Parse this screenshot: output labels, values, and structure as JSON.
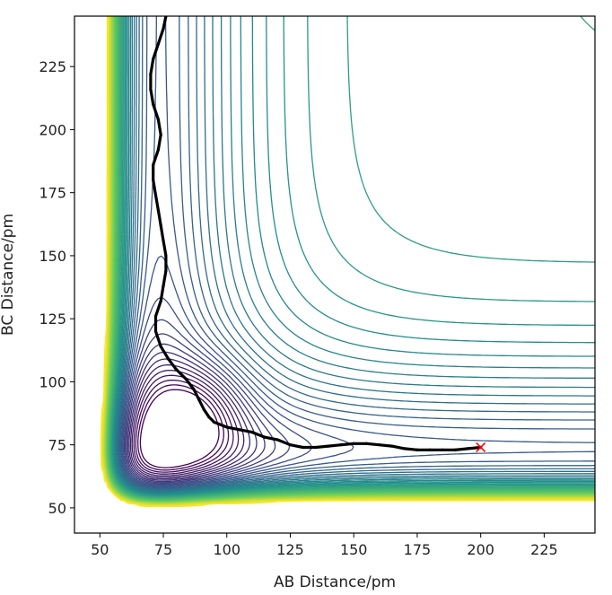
{
  "chart_data": {
    "type": "contour",
    "title": "",
    "xlabel": "AB Distance/pm",
    "ylabel": "BC Distance/pm",
    "xlim": [
      40,
      245
    ],
    "ylim": [
      40,
      245
    ],
    "xticks": [
      50,
      75,
      100,
      125,
      150,
      175,
      200,
      225
    ],
    "yticks": [
      50,
      75,
      100,
      125,
      150,
      175,
      200,
      225
    ],
    "colormap": "viridis",
    "colormap_stops": [
      "#440154",
      "#3b528b",
      "#21918c",
      "#5ec962",
      "#fde725"
    ],
    "grid": false,
    "legend": "none",
    "trajectory": {
      "color": "#000000",
      "points": [
        [
          76,
          245
        ],
        [
          75,
          240
        ],
        [
          73,
          234
        ],
        [
          71,
          228
        ],
        [
          70,
          222
        ],
        [
          70,
          216
        ],
        [
          71,
          210
        ],
        [
          73,
          204
        ],
        [
          74,
          198
        ],
        [
          73,
          192
        ],
        [
          71,
          186
        ],
        [
          71,
          180
        ],
        [
          72,
          174
        ],
        [
          73,
          168
        ],
        [
          74,
          162
        ],
        [
          75,
          156
        ],
        [
          76,
          150
        ],
        [
          76,
          144
        ],
        [
          75,
          138
        ],
        [
          74,
          132
        ],
        [
          72,
          126
        ],
        [
          72,
          120
        ],
        [
          74,
          114
        ],
        [
          77,
          109
        ],
        [
          80,
          105
        ],
        [
          84,
          101
        ],
        [
          87,
          97
        ],
        [
          89,
          93
        ],
        [
          91,
          89
        ],
        [
          93,
          86
        ],
        [
          95,
          84
        ],
        [
          100,
          82
        ],
        [
          105,
          81
        ],
        [
          110,
          80
        ],
        [
          115,
          78
        ],
        [
          120,
          77
        ],
        [
          125,
          75
        ],
        [
          130,
          74
        ],
        [
          135,
          74
        ],
        [
          140,
          74.5
        ],
        [
          145,
          75
        ],
        [
          150,
          75.5
        ],
        [
          155,
          75.5
        ],
        [
          160,
          75
        ],
        [
          165,
          74.5
        ],
        [
          170,
          73.5
        ],
        [
          175,
          73
        ],
        [
          180,
          73
        ],
        [
          185,
          73
        ],
        [
          190,
          73
        ],
        [
          195,
          73.5
        ],
        [
          200,
          74
        ]
      ]
    },
    "end_marker": {
      "x": 200,
      "y": 74,
      "symbol": "x",
      "color": "#ff0000"
    }
  }
}
